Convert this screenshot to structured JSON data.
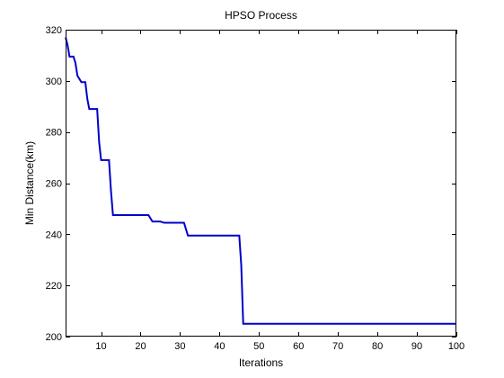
{
  "chart_data": {
    "type": "line",
    "title": "HPSO Process",
    "xlabel": "Iterations",
    "ylabel": "Min Distance(km)",
    "xlim": [
      1,
      100
    ],
    "ylim": [
      200,
      320
    ],
    "xticks": [
      10,
      20,
      30,
      40,
      50,
      60,
      70,
      80,
      90,
      100
    ],
    "yticks": [
      200,
      220,
      240,
      260,
      280,
      300,
      320
    ],
    "grid": false,
    "legend": "none",
    "line_color": "#0000cc",
    "series": [
      {
        "x": [
          1,
          1.5,
          2,
          3,
          3.5,
          4,
          5,
          6,
          6.5,
          7,
          8,
          9,
          9.5,
          10,
          11,
          12,
          12.5,
          13,
          14,
          15,
          20,
          21,
          22,
          23,
          24,
          25,
          26,
          27,
          28,
          29,
          30,
          31,
          32,
          33,
          34,
          40,
          44,
          45,
          45.5,
          46,
          50,
          60,
          70,
          80,
          90,
          100
        ],
        "y": [
          317,
          314,
          309.5,
          309.5,
          307,
          302,
          299.5,
          299.5,
          293,
          289,
          289,
          289,
          276,
          269,
          269,
          269,
          257,
          247.5,
          247.5,
          247.5,
          247.5,
          247.5,
          247.5,
          245,
          245,
          245,
          244.5,
          244.5,
          244.5,
          244.5,
          244.5,
          244.5,
          239.5,
          239.5,
          239.5,
          239.5,
          239.5,
          239.5,
          228,
          205,
          205,
          205,
          205,
          205,
          205,
          205
        ]
      }
    ]
  }
}
